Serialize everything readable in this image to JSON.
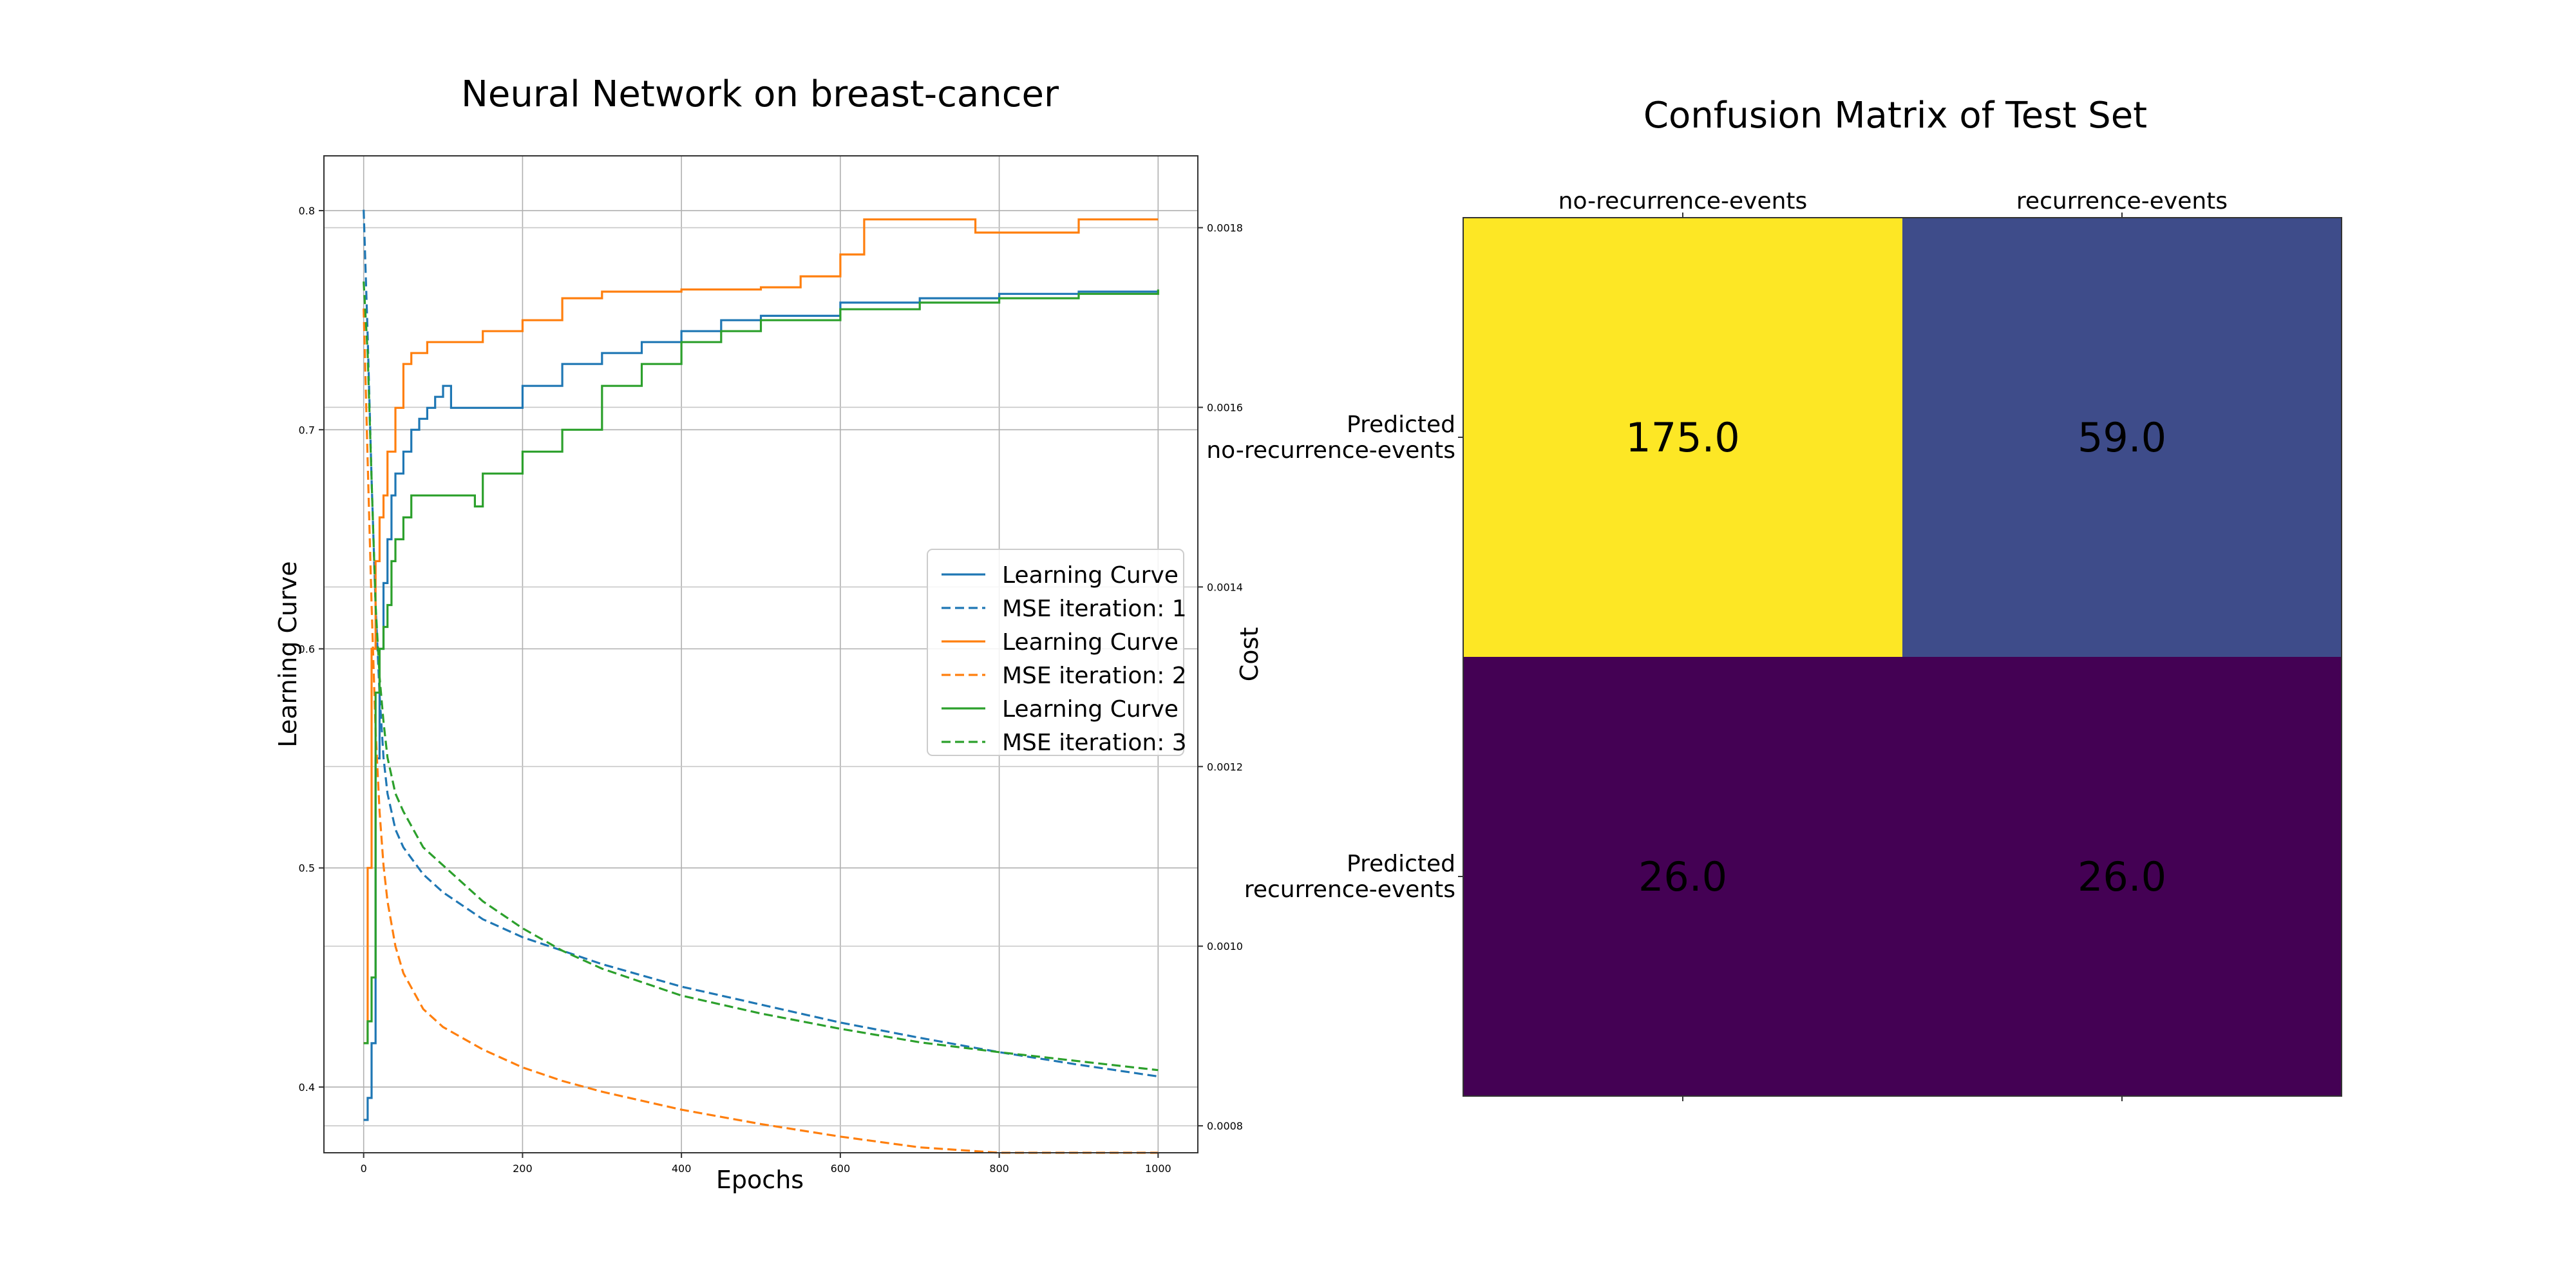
{
  "chart_data": [
    {
      "type": "line",
      "title": "Neural Network on breast-cancer",
      "xlabel": "Epochs",
      "ylabel": "Learning Curve",
      "y2label": "Cost",
      "xlim": [
        -50,
        1050
      ],
      "ylim": [
        0.37,
        0.825
      ],
      "y2lim": [
        0.00077,
        0.00188
      ],
      "xticks": [
        "0",
        "200",
        "400",
        "600",
        "800",
        "1000"
      ],
      "yticks": [
        "0.4",
        "0.5",
        "0.6",
        "0.7",
        "0.8"
      ],
      "y2ticks": [
        "0.0008",
        "0.0010",
        "0.0012",
        "0.0014",
        "0.0016",
        "0.0018"
      ],
      "grid": true,
      "legend_position": "center-right",
      "series": [
        {
          "name": "Learning Curve",
          "axis": "left",
          "style": "solid",
          "color": "#1f77b4",
          "x": [
            0,
            5,
            10,
            15,
            20,
            25,
            30,
            35,
            40,
            50,
            60,
            70,
            80,
            90,
            100,
            110,
            150,
            200,
            250,
            300,
            350,
            400,
            450,
            500,
            600,
            700,
            800,
            900,
            1000
          ],
          "y": [
            0.385,
            0.395,
            0.42,
            0.55,
            0.6,
            0.63,
            0.65,
            0.67,
            0.68,
            0.69,
            0.7,
            0.705,
            0.71,
            0.715,
            0.72,
            0.71,
            0.71,
            0.72,
            0.73,
            0.735,
            0.74,
            0.745,
            0.75,
            0.752,
            0.758,
            0.76,
            0.762,
            0.763,
            0.763
          ]
        },
        {
          "name": "MSE iteration: 1",
          "axis": "right",
          "style": "dashed",
          "color": "#1f77b4",
          "x": [
            0,
            5,
            10,
            15,
            20,
            25,
            30,
            40,
            50,
            75,
            100,
            150,
            200,
            250,
            300,
            400,
            500,
            600,
            700,
            800,
            900,
            1000
          ],
          "y": [
            0.00182,
            0.00168,
            0.00152,
            0.00138,
            0.00128,
            0.00121,
            0.00117,
            0.00113,
            0.00111,
            0.00108,
            0.00106,
            0.00103,
            0.00101,
            0.000995,
            0.00098,
            0.000955,
            0.000935,
            0.000915,
            0.000898,
            0.000882,
            0.000868,
            0.000855
          ]
        },
        {
          "name": "Learning Curve",
          "axis": "left",
          "style": "solid",
          "color": "#ff7f0e",
          "x": [
            0,
            5,
            10,
            15,
            20,
            25,
            30,
            40,
            50,
            60,
            70,
            80,
            100,
            150,
            200,
            250,
            300,
            400,
            500,
            550,
            600,
            630,
            700,
            770,
            900,
            1000
          ],
          "y": [
            0.42,
            0.5,
            0.6,
            0.64,
            0.66,
            0.67,
            0.69,
            0.71,
            0.73,
            0.735,
            0.735,
            0.74,
            0.74,
            0.745,
            0.75,
            0.76,
            0.763,
            0.764,
            0.765,
            0.77,
            0.78,
            0.796,
            0.796,
            0.79,
            0.796,
            0.796
          ]
        },
        {
          "name": "MSE iteration: 2",
          "axis": "right",
          "style": "dashed",
          "color": "#ff7f0e",
          "x": [
            0,
            5,
            10,
            15,
            20,
            25,
            30,
            40,
            50,
            75,
            100,
            150,
            200,
            250,
            300,
            400,
            500,
            600,
            700,
            800,
            900,
            1000
          ],
          "y": [
            0.00171,
            0.00154,
            0.00138,
            0.00124,
            0.00115,
            0.00109,
            0.00105,
            0.001,
            0.00097,
            0.00093,
            0.00091,
            0.000885,
            0.000865,
            0.00085,
            0.000838,
            0.000818,
            0.000802,
            0.000788,
            0.000776,
            0.000766,
            0.000758,
            0.00075
          ]
        },
        {
          "name": "Learning Curve",
          "axis": "left",
          "style": "solid",
          "color": "#2ca02c",
          "x": [
            0,
            5,
            10,
            15,
            20,
            25,
            30,
            35,
            40,
            50,
            60,
            70,
            80,
            100,
            130,
            140,
            150,
            200,
            250,
            300,
            350,
            400,
            450,
            500,
            600,
            700,
            800,
            900,
            1000
          ],
          "y": [
            0.42,
            0.43,
            0.45,
            0.58,
            0.6,
            0.61,
            0.62,
            0.64,
            0.65,
            0.66,
            0.67,
            0.67,
            0.67,
            0.67,
            0.67,
            0.665,
            0.68,
            0.69,
            0.7,
            0.72,
            0.73,
            0.74,
            0.745,
            0.75,
            0.755,
            0.758,
            0.76,
            0.762,
            0.764
          ]
        },
        {
          "name": "MSE iteration: 3",
          "axis": "right",
          "style": "dashed",
          "color": "#2ca02c",
          "x": [
            0,
            5,
            10,
            15,
            20,
            25,
            30,
            40,
            50,
            75,
            100,
            150,
            200,
            250,
            300,
            400,
            500,
            600,
            700,
            800,
            900,
            1000
          ],
          "y": [
            0.00174,
            0.00166,
            0.00152,
            0.00138,
            0.0013,
            0.00125,
            0.00121,
            0.00117,
            0.00115,
            0.00111,
            0.00109,
            0.00105,
            0.00102,
            0.000995,
            0.000975,
            0.000945,
            0.000925,
            0.000908,
            0.000893,
            0.000882,
            0.000872,
            0.000862
          ]
        }
      ]
    },
    {
      "type": "heatmap",
      "title": "Confusion Matrix of Test Set",
      "columns": [
        "no-recurrence-events",
        "recurrence-events"
      ],
      "rows": [
        "Predicted\nno-recurrence-events",
        "Predicted\nrecurrence-events"
      ],
      "row_label_lines": [
        [
          "Predicted",
          "no-recurrence-events"
        ],
        [
          "Predicted",
          "recurrence-events"
        ]
      ],
      "values": [
        [
          175.0,
          59.0
        ],
        [
          26.0,
          26.0
        ]
      ],
      "value_labels": [
        [
          "175.0",
          "59.0"
        ],
        [
          "26.0",
          "26.0"
        ]
      ],
      "cell_colors": [
        [
          "#fde725",
          "#3e4c8a"
        ],
        [
          "#440154",
          "#440154"
        ]
      ],
      "text_color": "#000000"
    }
  ]
}
